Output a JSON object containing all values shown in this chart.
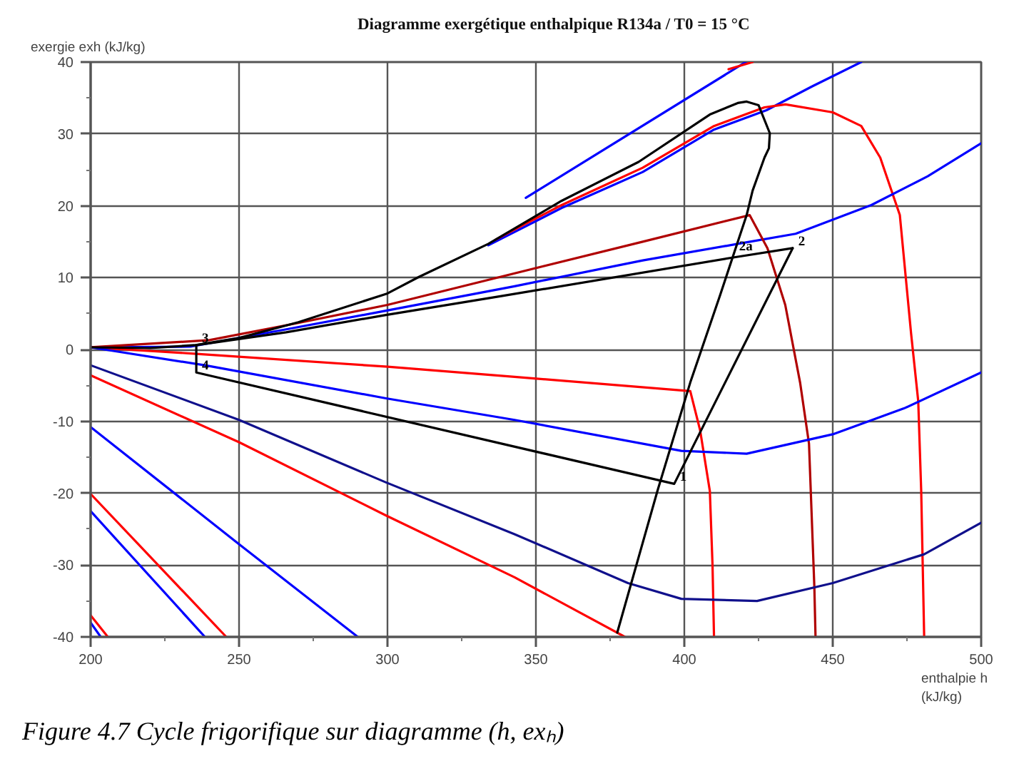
{
  "chart_data": {
    "type": "line",
    "title": "Diagramme exergétique enthalpique R134a / T0 = 15 °C",
    "xlabel": "enthalpie h (kJ/kg)",
    "ylabel": "exergie exh (kJ/kg)",
    "xlim": [
      200,
      500
    ],
    "ylim": [
      -40,
      40
    ],
    "xticks": [
      200,
      {
        "value": 225,
        "label": null
      },
      250,
      {
        "value": 275,
        "label": null
      },
      300,
      {
        "value": 325,
        "label": null
      },
      350,
      {
        "value": 375,
        "label": null
      },
      400,
      {
        "value": 425,
        "label": null
      },
      450,
      {
        "value": 475,
        "label": null
      },
      500
    ],
    "yticks": [
      -40,
      {
        "value": -35,
        "label": null
      },
      -30,
      {
        "value": -25,
        "label": null
      },
      -20,
      {
        "value": -15,
        "label": null
      },
      -10,
      {
        "value": -5,
        "label": null
      },
      0,
      {
        "value": 5,
        "label": null
      },
      10,
      {
        "value": 15,
        "label": null
      },
      20,
      {
        "value": 25,
        "label": null
      },
      30,
      {
        "value": 35,
        "label": null
      },
      40
    ],
    "grid": true,
    "series": [
      {
        "color": "#0000ff",
        "x": [
          346.6,
          420.7
        ],
        "values": [
          21.1,
          40
        ]
      },
      {
        "color": "#ff0000",
        "x": [
          414.9,
          423
        ],
        "values": [
          39,
          40
        ]
      },
      {
        "color": "#0000ff",
        "x": [
          334,
          358.7,
          386,
          410,
          427.7,
          443,
          459.6
        ],
        "values": [
          14.5,
          19.7,
          24.7,
          30.6,
          33.3,
          36.6,
          40
        ]
      },
      {
        "color": "#ff0000",
        "x": [
          336.5,
          342.8,
          358.7,
          386,
          410,
          427,
          434.1,
          450,
          459.6,
          466,
          472.6,
          476.4,
          478.8,
          479.8,
          480.8
        ],
        "values": [
          15.3,
          16.7,
          20.1,
          25.3,
          31.1,
          33.7,
          34.1,
          33,
          31.1,
          26.7,
          18.7,
          2.2,
          -7.2,
          -19.7,
          -40
        ]
      },
      {
        "color": "#0000ff",
        "x": [
          200,
          233.7,
          265.9,
          299.5,
          342.8,
          386,
          418,
          437.5,
          463,
          482,
          500
        ],
        "values": [
          0.3,
          0.4,
          2.8,
          5.4,
          8.8,
          12.4,
          14.7,
          16.1,
          20.1,
          24.1,
          28.7
        ]
      },
      {
        "color": "#b00000",
        "x": [
          200,
          240,
          270,
          300,
          338,
          386,
          422,
          428,
          434,
          439,
          442,
          443.8,
          444.2
        ],
        "values": [
          0.3,
          1.3,
          3.7,
          6.2,
          10.1,
          15.0,
          18.7,
          14.1,
          6.2,
          -4.6,
          -13.1,
          -33,
          -40
        ]
      },
      {
        "color": "#ff0000",
        "x": [
          200,
          235.6,
          300,
          342.8,
          402,
          405.3,
          408.6,
          409.5,
          410
        ],
        "values": [
          0.3,
          -0.6,
          -2.4,
          -3.8,
          -5.8,
          -11.2,
          -19.7,
          -30,
          -40
        ]
      },
      {
        "color": "#0000ff",
        "x": [
          200,
          238.5,
          299.5,
          342.8,
          399,
          421,
          450,
          474,
          500
        ],
        "values": [
          0.3,
          -2.2,
          -6.8,
          -9.8,
          -14.1,
          -14.5,
          -11.8,
          -8.2,
          -3.2
        ]
      },
      {
        "color": "#10108c",
        "x": [
          200,
          250,
          299.5,
          342.8,
          381,
          399,
          424.5,
          450,
          480.8,
          500
        ],
        "values": [
          -2.2,
          -9.8,
          -18.5,
          -25.7,
          -32.5,
          -34.7,
          -35,
          -32.5,
          -28.5,
          -24.1
        ]
      },
      {
        "color": "#ff0000",
        "x": [
          200,
          250,
          299.5,
          342.8,
          380
        ],
        "values": [
          -3.6,
          -12.9,
          -23.1,
          -31.7,
          -40
        ]
      },
      {
        "color": "#0000ff",
        "x": [
          200,
          250,
          290
        ],
        "values": [
          -10.8,
          -27.1,
          -40
        ]
      },
      {
        "color": "#ff0000",
        "x": [
          200,
          245.7
        ],
        "values": [
          -20.1,
          -40
        ]
      },
      {
        "color": "#0000ff",
        "x": [
          200,
          238.5
        ],
        "values": [
          -22.5,
          -40
        ]
      },
      {
        "color": "#ff0000",
        "x": [
          200,
          205.8
        ],
        "values": [
          -37,
          -40
        ]
      },
      {
        "color": "#0000ff",
        "x": [
          200,
          203.4
        ],
        "values": [
          -38,
          -40
        ]
      },
      {
        "color": "#000000",
        "x": [
          200,
          220,
          235,
          250,
          270,
          300,
          310.6,
          334,
          358.7,
          384.6,
          408.6,
          418,
          421,
          425,
          428.8,
          428.5,
          427,
          423,
          421,
          412,
          402,
          391,
          377.4
        ],
        "values": [
          0.3,
          0.2,
          0.6,
          1.6,
          3.8,
          7.8,
          10.1,
          14.7,
          20.7,
          26.1,
          32.7,
          34.3,
          34.5,
          34,
          30.1,
          28,
          26.7,
          22.1,
          18.7,
          7.5,
          -4.6,
          -19.6,
          -39.4
        ]
      },
      {
        "color": "#000000",
        "x": [
          235.6,
          235.6,
          396.6,
          436.5
        ],
        "values": [
          0.6,
          -3.2,
          -18.7,
          14.1
        ]
      },
      {
        "color": "#000000",
        "x": [
          235.6,
          265.9,
          299.5,
          338,
          416.5,
          436.5
        ],
        "values": [
          0.6,
          2.4,
          4.8,
          7.4,
          12.8,
          14.1
        ]
      }
    ],
    "annotations": [
      {
        "text": "1",
        "x": 396.6,
        "y": -18.7
      },
      {
        "text": "2",
        "x": 436.5,
        "y": 14.1
      },
      {
        "text": "2a",
        "x": 416.5,
        "y": 12.8
      },
      {
        "text": "3",
        "x": 235.6,
        "y": 0.6
      },
      {
        "text": "4",
        "x": 235.6,
        "y": -3.2
      },
      "Figure 4.7 Cycle frigorifique sur diagramme (h, exₕ)"
    ]
  }
}
